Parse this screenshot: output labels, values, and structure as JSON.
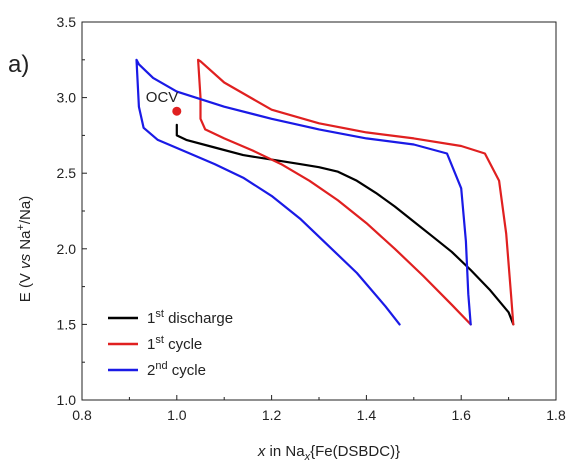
{
  "chart_data": {
    "type": "line",
    "panel_label": "a)",
    "xlabel": {
      "italic": "x",
      "rest": " in Na",
      "sub": "x",
      "tail": "{Fe(DSBDC)}"
    },
    "ylabel": {
      "pre": "E (V ",
      "italic": "vs",
      "mid": " Na",
      "sup": "+",
      "tail": "/Na)"
    },
    "xlim": [
      0.8,
      1.8
    ],
    "ylim": [
      1.0,
      3.5
    ],
    "xticks": [
      "0.8",
      "1.0",
      "1.2",
      "1.4",
      "1.6",
      "1.8"
    ],
    "yticks": [
      "1.0",
      "1.5",
      "2.0",
      "2.5",
      "3.0",
      "3.5"
    ],
    "grid": false,
    "legend_position": "bottom-left",
    "annotations": [
      {
        "text": "OCV",
        "x": 1.0,
        "y": 2.91,
        "color": "#e02020"
      }
    ],
    "series": [
      {
        "name": {
          "base": "1",
          "sup": "st",
          "rest": " discharge"
        },
        "color": "#000000",
        "x": [
          1.0,
          1.0,
          1.02,
          1.08,
          1.14,
          1.2,
          1.26,
          1.3,
          1.34,
          1.38,
          1.42,
          1.46,
          1.5,
          1.54,
          1.58,
          1.62,
          1.66,
          1.7,
          1.71
        ],
        "y": [
          2.82,
          2.75,
          2.72,
          2.67,
          2.62,
          2.59,
          2.56,
          2.54,
          2.51,
          2.45,
          2.37,
          2.28,
          2.18,
          2.08,
          1.98,
          1.86,
          1.73,
          1.58,
          1.5
        ]
      },
      {
        "name": {
          "base": "1",
          "sup": "st",
          "rest": " cycle"
        },
        "color": "#e02020",
        "x": [
          1.62,
          1.58,
          1.52,
          1.46,
          1.4,
          1.34,
          1.28,
          1.22,
          1.16,
          1.1,
          1.06,
          1.05,
          1.05,
          1.045,
          1.05,
          1.1,
          1.2,
          1.3,
          1.4,
          1.5,
          1.6,
          1.65,
          1.68,
          1.695,
          1.705,
          1.71
        ],
        "y": [
          1.5,
          1.63,
          1.82,
          2.0,
          2.17,
          2.32,
          2.45,
          2.56,
          2.65,
          2.73,
          2.79,
          2.86,
          3.0,
          3.25,
          3.24,
          3.1,
          2.92,
          2.83,
          2.77,
          2.73,
          2.68,
          2.63,
          2.45,
          2.1,
          1.7,
          1.5
        ]
      },
      {
        "name": {
          "base": "2",
          "sup": "nd",
          "rest": " cycle"
        },
        "color": "#1a1ae6",
        "x": [
          1.47,
          1.44,
          1.38,
          1.32,
          1.26,
          1.2,
          1.14,
          1.08,
          1.02,
          0.96,
          0.93,
          0.92,
          0.915,
          0.92,
          0.95,
          1.0,
          1.1,
          1.2,
          1.3,
          1.4,
          1.5,
          1.57,
          1.6,
          1.61,
          1.615,
          1.62
        ],
        "y": [
          1.5,
          1.62,
          1.84,
          2.02,
          2.2,
          2.35,
          2.47,
          2.56,
          2.64,
          2.72,
          2.8,
          2.94,
          3.25,
          3.22,
          3.13,
          3.04,
          2.94,
          2.86,
          2.79,
          2.73,
          2.69,
          2.63,
          2.4,
          2.05,
          1.7,
          1.5
        ]
      }
    ]
  }
}
